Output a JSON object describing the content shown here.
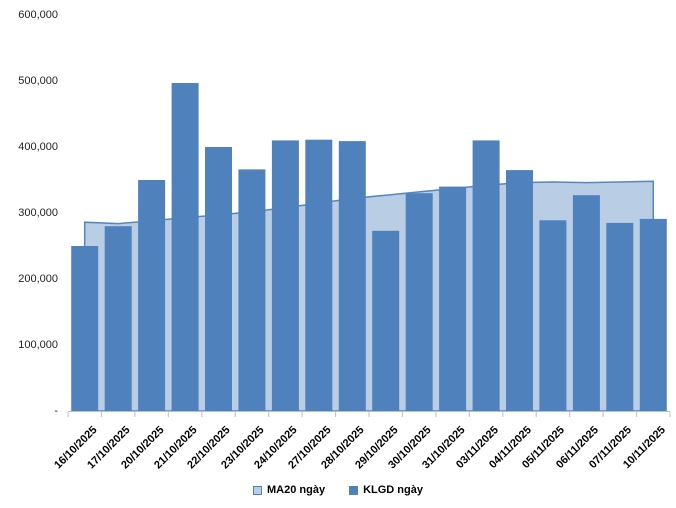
{
  "chart_data": {
    "type": "bar",
    "title": "",
    "xlabel": "",
    "ylabel": "",
    "categories": [
      "16/10/2025",
      "17/10/2025",
      "20/10/2025",
      "21/10/2025",
      "22/10/2025",
      "23/10/2025",
      "24/10/2025",
      "27/10/2025",
      "28/10/2025",
      "29/10/2025",
      "30/10/2025",
      "31/10/2025",
      "03/11/2025",
      "04/11/2025",
      "05/11/2025",
      "06/11/2025",
      "07/11/2025",
      "10/11/2025"
    ],
    "series": [
      {
        "name": "MA20 ngày",
        "type": "area",
        "fill_color": "#b9cde5",
        "line_color": "#5586bf",
        "values": [
          286000,
          284000,
          288000,
          293000,
          297000,
          302000,
          308000,
          315000,
          322000,
          327000,
          332000,
          337000,
          342000,
          346000,
          347000,
          346000,
          347000,
          348000
        ]
      },
      {
        "name": "KLGD ngày",
        "type": "bar",
        "fill_color": "#4f81bd",
        "values": [
          250000,
          280000,
          350000,
          497000,
          400000,
          366000,
          410000,
          411000,
          409000,
          273000,
          330000,
          340000,
          410000,
          365000,
          289000,
          327000,
          285000,
          291000
        ]
      }
    ],
    "ylim": [
      0,
      600000
    ],
    "ytick_step": 100000,
    "ytick_labels": [
      "-",
      "100,000",
      "200,000",
      "300,000",
      "400,000",
      "500,000",
      "600,000"
    ],
    "grid": false,
    "legend_position": "bottom",
    "axis_color": "#b4c1d4",
    "text_color": "#1f1f1f"
  },
  "legend": {
    "ma20_label": "MA20 ngày",
    "klgd_label": "KLGD ngày"
  }
}
